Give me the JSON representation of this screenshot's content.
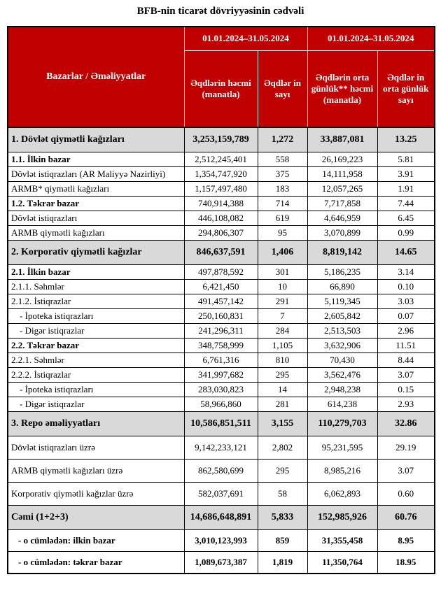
{
  "title": "BFB-nin ticarət dövriyyəsinin cədvəli",
  "colors": {
    "header_red": "#C00000",
    "section_gray": "#D9D9D9"
  },
  "table": {
    "corner_header": "Bazarlar / Əməliyyatlar",
    "period_headers": [
      "01.01.2024–31.05.2024",
      "01.01.2024–31.05.2024"
    ],
    "sub_headers": [
      "Əqdlərin həcmi (manatla)",
      "Əqdlər in sayı",
      "Əqdlərin orta günlük** həcmi (manatla)",
      "Əqdlər in orta günlük sayı"
    ],
    "rows": [
      {
        "label": "1. Dövlət qiymətli kağızları",
        "style": "section",
        "values": [
          "3,253,159,789",
          "1,272",
          "33,887,081",
          "13.25"
        ]
      },
      {
        "label": "1.1. İlkin bazar",
        "style": "subsection",
        "values": [
          "2,512,245,401",
          "558",
          "26,169,223",
          "5.81"
        ]
      },
      {
        "label": "Dövlət istiqrazları (AR Maliyyə Nazirliyi)",
        "style": "normal",
        "values": [
          "1,354,747,920",
          "375",
          "14,111,958",
          "3.91"
        ]
      },
      {
        "label": "ARMB* qiymətli kağızları",
        "style": "normal",
        "values": [
          "1,157,497,480",
          "183",
          "12,057,265",
          "1.91"
        ]
      },
      {
        "label": "1.2. Təkrar bazar",
        "style": "subsection",
        "values": [
          "740,914,388",
          "714",
          "7,717,858",
          "7.44"
        ]
      },
      {
        "label": "Dövlət istiqrazları",
        "style": "normal",
        "values": [
          "446,108,082",
          "619",
          "4,646,959",
          "6.45"
        ]
      },
      {
        "label": "ARMB qiymətli kağızları",
        "style": "normal",
        "values": [
          "294,806,307",
          "95",
          "3,070,899",
          "0.99"
        ]
      },
      {
        "label": "2. Korporativ qiymətli kağızlar",
        "style": "section",
        "values": [
          "846,637,591",
          "1,406",
          "8,819,142",
          "14.65"
        ]
      },
      {
        "label": "2.1. İlkin bazar",
        "style": "subsection",
        "values": [
          "497,878,592",
          "301",
          "5,186,235",
          "3.14"
        ]
      },
      {
        "label": "2.1.1. Səhmlər",
        "style": "normal",
        "values": [
          "6,421,450",
          "10",
          "66,890",
          "0.10"
        ]
      },
      {
        "label": "2.1.2. İstiqrazlar",
        "style": "normal",
        "values": [
          "491,457,142",
          "291",
          "5,119,345",
          "3.03"
        ]
      },
      {
        "label": "- İpoteka istiqrazları",
        "style": "indent",
        "values": [
          "250,160,831",
          "7",
          "2,605,842",
          "0.07"
        ]
      },
      {
        "label": "- Digər istiqrazlar",
        "style": "indent",
        "values": [
          "241,296,311",
          "284",
          "2,513,503",
          "2.96"
        ]
      },
      {
        "label": "2.2. Təkrar bazar",
        "style": "subsection",
        "values": [
          "348,758,999",
          "1,105",
          "3,632,906",
          "11.51"
        ]
      },
      {
        "label": "2.2.1. Səhmlər",
        "style": "normal",
        "values": [
          "6,761,316",
          "810",
          "70,430",
          "8.44"
        ]
      },
      {
        "label": "2.2.2. İstiqrazlar",
        "style": "normal",
        "values": [
          "341,997,682",
          "295",
          "3,562,476",
          "3.07"
        ]
      },
      {
        "label": "- İpoteka istiqrazları",
        "style": "indent",
        "values": [
          "283,030,823",
          "14",
          "2,948,238",
          "0.15"
        ]
      },
      {
        "label": "- Digər istiqrazlar",
        "style": "indent",
        "values": [
          "58,966,860",
          "281",
          "614,238",
          "2.93"
        ]
      },
      {
        "label": "3. Repo əməliyyatları",
        "style": "section",
        "values": [
          "10,586,851,511",
          "3,155",
          "110,279,703",
          "32.86"
        ]
      },
      {
        "label": "Dövlət istiqrazları üzrə",
        "style": "normal-tall",
        "values": [
          "9,142,233,121",
          "2,802",
          "95,231,595",
          "29.19"
        ]
      },
      {
        "label": "ARMB qiymətli kağızları üzrə",
        "style": "normal-tall",
        "values": [
          "862,580,699",
          "295",
          "8,985,216",
          "3.07"
        ]
      },
      {
        "label": "Korporativ qiymətli kağızlar üzrə",
        "style": "normal-tall",
        "values": [
          "582,037,691",
          "58",
          "6,062,893",
          "0.60"
        ]
      },
      {
        "label": "Cəmi (1+2+3)",
        "style": "total",
        "values": [
          "14,686,648,891",
          "5,833",
          "152,985,926",
          "60.76"
        ]
      },
      {
        "label": "- o cümlədən: ilkin bazar",
        "style": "bold-tall",
        "values": [
          "3,010,123,993",
          "859",
          "31,355,458",
          "8.95"
        ]
      },
      {
        "label": "- o cümlədən: təkrar bazar",
        "style": "bold-tall",
        "values": [
          "1,089,673,387",
          "1,819",
          "11,350,764",
          "18.95"
        ]
      }
    ]
  }
}
